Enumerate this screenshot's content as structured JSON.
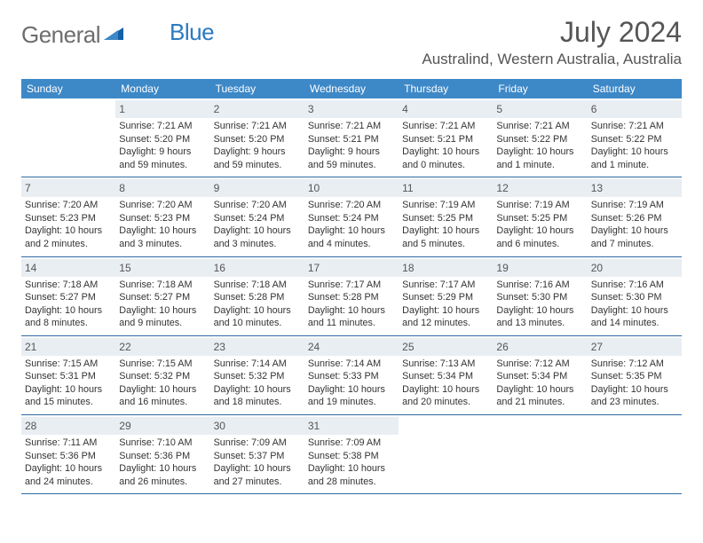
{
  "logo": {
    "text_left": "General",
    "text_right": "Blue"
  },
  "title": "July 2024",
  "location": "Australind, Western Australia, Australia",
  "colors": {
    "header_bg": "#3d88c7",
    "header_text": "#ffffff",
    "daynum_bg": "#e9eef3",
    "border": "#2f6aa3",
    "body_text": "#333333",
    "title_text": "#555555"
  },
  "day_headers": [
    "Sunday",
    "Monday",
    "Tuesday",
    "Wednesday",
    "Thursday",
    "Friday",
    "Saturday"
  ],
  "weeks": [
    [
      {
        "day": "",
        "sunrise": "",
        "sunset": "",
        "daylight": ""
      },
      {
        "day": "1",
        "sunrise": "Sunrise: 7:21 AM",
        "sunset": "Sunset: 5:20 PM",
        "daylight": "Daylight: 9 hours and 59 minutes."
      },
      {
        "day": "2",
        "sunrise": "Sunrise: 7:21 AM",
        "sunset": "Sunset: 5:20 PM",
        "daylight": "Daylight: 9 hours and 59 minutes."
      },
      {
        "day": "3",
        "sunrise": "Sunrise: 7:21 AM",
        "sunset": "Sunset: 5:21 PM",
        "daylight": "Daylight: 9 hours and 59 minutes."
      },
      {
        "day": "4",
        "sunrise": "Sunrise: 7:21 AM",
        "sunset": "Sunset: 5:21 PM",
        "daylight": "Daylight: 10 hours and 0 minutes."
      },
      {
        "day": "5",
        "sunrise": "Sunrise: 7:21 AM",
        "sunset": "Sunset: 5:22 PM",
        "daylight": "Daylight: 10 hours and 1 minute."
      },
      {
        "day": "6",
        "sunrise": "Sunrise: 7:21 AM",
        "sunset": "Sunset: 5:22 PM",
        "daylight": "Daylight: 10 hours and 1 minute."
      }
    ],
    [
      {
        "day": "7",
        "sunrise": "Sunrise: 7:20 AM",
        "sunset": "Sunset: 5:23 PM",
        "daylight": "Daylight: 10 hours and 2 minutes."
      },
      {
        "day": "8",
        "sunrise": "Sunrise: 7:20 AM",
        "sunset": "Sunset: 5:23 PM",
        "daylight": "Daylight: 10 hours and 3 minutes."
      },
      {
        "day": "9",
        "sunrise": "Sunrise: 7:20 AM",
        "sunset": "Sunset: 5:24 PM",
        "daylight": "Daylight: 10 hours and 3 minutes."
      },
      {
        "day": "10",
        "sunrise": "Sunrise: 7:20 AM",
        "sunset": "Sunset: 5:24 PM",
        "daylight": "Daylight: 10 hours and 4 minutes."
      },
      {
        "day": "11",
        "sunrise": "Sunrise: 7:19 AM",
        "sunset": "Sunset: 5:25 PM",
        "daylight": "Daylight: 10 hours and 5 minutes."
      },
      {
        "day": "12",
        "sunrise": "Sunrise: 7:19 AM",
        "sunset": "Sunset: 5:25 PM",
        "daylight": "Daylight: 10 hours and 6 minutes."
      },
      {
        "day": "13",
        "sunrise": "Sunrise: 7:19 AM",
        "sunset": "Sunset: 5:26 PM",
        "daylight": "Daylight: 10 hours and 7 minutes."
      }
    ],
    [
      {
        "day": "14",
        "sunrise": "Sunrise: 7:18 AM",
        "sunset": "Sunset: 5:27 PM",
        "daylight": "Daylight: 10 hours and 8 minutes."
      },
      {
        "day": "15",
        "sunrise": "Sunrise: 7:18 AM",
        "sunset": "Sunset: 5:27 PM",
        "daylight": "Daylight: 10 hours and 9 minutes."
      },
      {
        "day": "16",
        "sunrise": "Sunrise: 7:18 AM",
        "sunset": "Sunset: 5:28 PM",
        "daylight": "Daylight: 10 hours and 10 minutes."
      },
      {
        "day": "17",
        "sunrise": "Sunrise: 7:17 AM",
        "sunset": "Sunset: 5:28 PM",
        "daylight": "Daylight: 10 hours and 11 minutes."
      },
      {
        "day": "18",
        "sunrise": "Sunrise: 7:17 AM",
        "sunset": "Sunset: 5:29 PM",
        "daylight": "Daylight: 10 hours and 12 minutes."
      },
      {
        "day": "19",
        "sunrise": "Sunrise: 7:16 AM",
        "sunset": "Sunset: 5:30 PM",
        "daylight": "Daylight: 10 hours and 13 minutes."
      },
      {
        "day": "20",
        "sunrise": "Sunrise: 7:16 AM",
        "sunset": "Sunset: 5:30 PM",
        "daylight": "Daylight: 10 hours and 14 minutes."
      }
    ],
    [
      {
        "day": "21",
        "sunrise": "Sunrise: 7:15 AM",
        "sunset": "Sunset: 5:31 PM",
        "daylight": "Daylight: 10 hours and 15 minutes."
      },
      {
        "day": "22",
        "sunrise": "Sunrise: 7:15 AM",
        "sunset": "Sunset: 5:32 PM",
        "daylight": "Daylight: 10 hours and 16 minutes."
      },
      {
        "day": "23",
        "sunrise": "Sunrise: 7:14 AM",
        "sunset": "Sunset: 5:32 PM",
        "daylight": "Daylight: 10 hours and 18 minutes."
      },
      {
        "day": "24",
        "sunrise": "Sunrise: 7:14 AM",
        "sunset": "Sunset: 5:33 PM",
        "daylight": "Daylight: 10 hours and 19 minutes."
      },
      {
        "day": "25",
        "sunrise": "Sunrise: 7:13 AM",
        "sunset": "Sunset: 5:34 PM",
        "daylight": "Daylight: 10 hours and 20 minutes."
      },
      {
        "day": "26",
        "sunrise": "Sunrise: 7:12 AM",
        "sunset": "Sunset: 5:34 PM",
        "daylight": "Daylight: 10 hours and 21 minutes."
      },
      {
        "day": "27",
        "sunrise": "Sunrise: 7:12 AM",
        "sunset": "Sunset: 5:35 PM",
        "daylight": "Daylight: 10 hours and 23 minutes."
      }
    ],
    [
      {
        "day": "28",
        "sunrise": "Sunrise: 7:11 AM",
        "sunset": "Sunset: 5:36 PM",
        "daylight": "Daylight: 10 hours and 24 minutes."
      },
      {
        "day": "29",
        "sunrise": "Sunrise: 7:10 AM",
        "sunset": "Sunset: 5:36 PM",
        "daylight": "Daylight: 10 hours and 26 minutes."
      },
      {
        "day": "30",
        "sunrise": "Sunrise: 7:09 AM",
        "sunset": "Sunset: 5:37 PM",
        "daylight": "Daylight: 10 hours and 27 minutes."
      },
      {
        "day": "31",
        "sunrise": "Sunrise: 7:09 AM",
        "sunset": "Sunset: 5:38 PM",
        "daylight": "Daylight: 10 hours and 28 minutes."
      },
      {
        "day": "",
        "sunrise": "",
        "sunset": "",
        "daylight": ""
      },
      {
        "day": "",
        "sunrise": "",
        "sunset": "",
        "daylight": ""
      },
      {
        "day": "",
        "sunrise": "",
        "sunset": "",
        "daylight": ""
      }
    ]
  ]
}
